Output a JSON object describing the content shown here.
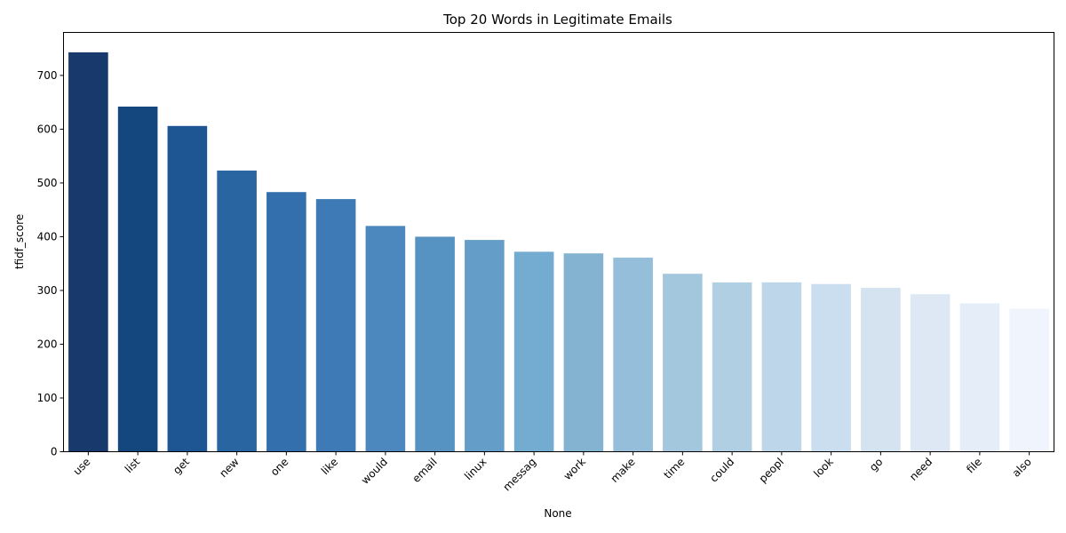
{
  "chart_data": {
    "type": "bar",
    "title": "Top 20 Words in Legitimate Emails",
    "xlabel": "None",
    "ylabel": "tfidf_score",
    "categories": [
      "use",
      "list",
      "get",
      "new",
      "one",
      "like",
      "would",
      "email",
      "linux",
      "messag",
      "work",
      "make",
      "time",
      "could",
      "peopl",
      "look",
      "go",
      "need",
      "file",
      "also"
    ],
    "values": [
      743,
      642,
      606,
      523,
      483,
      470,
      420,
      400,
      394,
      372,
      369,
      361,
      331,
      315,
      315,
      312,
      305,
      293,
      276,
      266
    ],
    "ylim": [
      0,
      780
    ],
    "yticks": [
      0,
      100,
      200,
      300,
      400,
      500,
      600,
      700
    ],
    "colors": [
      "#18396b",
      "#15477f",
      "#1e5693",
      "#2965a1",
      "#346fad",
      "#3e7bb6",
      "#4c87bd",
      "#5793c2",
      "#649ec8",
      "#74abd1",
      "#84b3d2",
      "#94bed9",
      "#a3c8de",
      "#b1cfe3",
      "#bdd6e9",
      "#cadeef",
      "#d5e3f0",
      "#dde8f4",
      "#e5eef8",
      "#eff4fd"
    ],
    "grid": false,
    "legend": "none"
  }
}
